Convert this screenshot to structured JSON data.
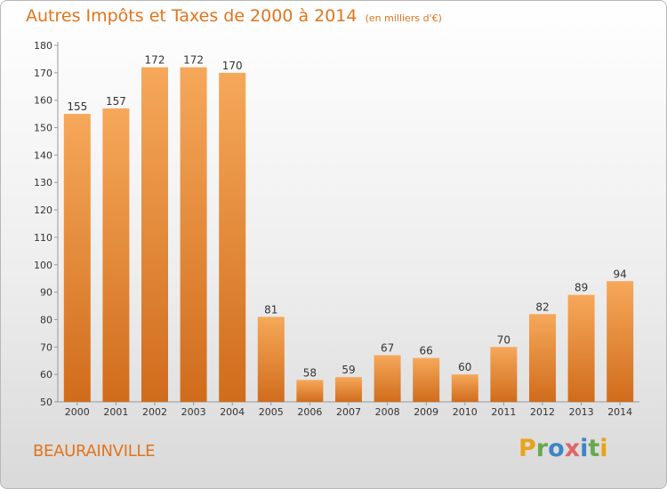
{
  "header": {
    "title": "Autres Impôts et Taxes de 2000 à 2014",
    "unit": "(en milliers d'€)"
  },
  "footer": {
    "commune": "BEAURAINVILLE",
    "logo_text": "Proxiti"
  },
  "colors": {
    "accent": "#e2741b",
    "bar_light": "#f6a85a",
    "bar_dark": "#d06c1c",
    "logo_letters": [
      "#e8a31b",
      "#6aa84f",
      "#3d85c6",
      "#e06666",
      "#3d85c6",
      "#6aa84f",
      "#e8a31b"
    ]
  },
  "chart_data": {
    "type": "bar",
    "title": "Autres Impôts et Taxes de 2000 à 2014",
    "subtitle": "(en milliers d'€)",
    "xlabel": "",
    "ylabel": "",
    "categories": [
      "2000",
      "2001",
      "2002",
      "2003",
      "2004",
      "2005",
      "2006",
      "2007",
      "2008",
      "2009",
      "2010",
      "2011",
      "2012",
      "2013",
      "2014"
    ],
    "values": [
      155,
      157,
      172,
      172,
      170,
      81,
      58,
      59,
      67,
      66,
      60,
      70,
      82,
      89,
      94
    ],
    "ylim": [
      50,
      180
    ],
    "yticks": [
      50,
      60,
      70,
      80,
      90,
      100,
      110,
      120,
      130,
      140,
      150,
      160,
      170,
      180
    ],
    "grid": false,
    "legend": "none"
  }
}
